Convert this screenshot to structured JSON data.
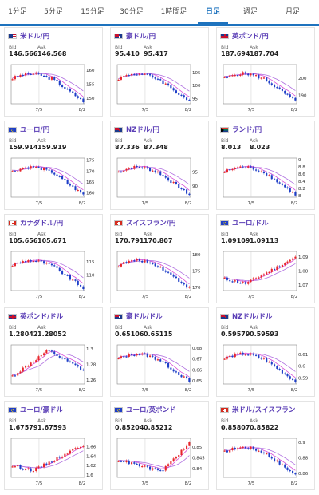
{
  "tabs": [
    "1分足",
    "5分足",
    "15分足",
    "30分足",
    "1時間足",
    "日足",
    "週足",
    "月足"
  ],
  "active_tab": 5,
  "labels": {
    "bid": "Bid",
    "ask": "Ask"
  },
  "cards": [
    {
      "name": "米ドル/円",
      "bid": "146.566",
      "ask": "146.568",
      "flag": "us",
      "x_ticks": [
        "7/5",
        "8/2"
      ],
      "y_ticks": [
        "160",
        "155",
        "150"
      ],
      "trend": "down",
      "ylim": [
        148,
        162
      ]
    },
    {
      "name": "豪ドル/円",
      "bid": "95.410",
      "ask": "95.417",
      "flag": "au",
      "x_ticks": [
        "7/5",
        "8/2"
      ],
      "y_ticks": [
        "105",
        "100",
        "95"
      ],
      "trend": "down",
      "ylim": [
        93,
        108
      ]
    },
    {
      "name": "英ポンド/円",
      "bid": "187.694",
      "ask": "187.704",
      "flag": "gb",
      "x_ticks": [
        "7/5",
        "8/2"
      ],
      "y_ticks": [
        "200",
        "190"
      ],
      "trend": "down",
      "ylim": [
        185,
        208
      ]
    },
    {
      "name": "ユーロ/円",
      "bid": "159.914",
      "ask": "159.919",
      "flag": "eu",
      "x_ticks": [
        "7/5",
        "8/2"
      ],
      "y_ticks": [
        "175",
        "170",
        "165",
        "160"
      ],
      "trend": "down",
      "ylim": [
        158,
        176
      ]
    },
    {
      "name": "NZドル/円",
      "bid": "87.336",
      "ask": "87.348",
      "flag": "nz",
      "x_ticks": [
        "7/5",
        "8/2"
      ],
      "y_ticks": [
        "95",
        "90"
      ],
      "trend": "down",
      "ylim": [
        86,
        100
      ]
    },
    {
      "name": "ランド/円",
      "bid": "8.013",
      "ask": "8.023",
      "flag": "za",
      "x_ticks": [
        "7/5",
        "8/2"
      ],
      "y_ticks": [
        "9",
        "8.8",
        "8.6",
        "8.4",
        "8.2",
        "8"
      ],
      "trend": "down",
      "ylim": [
        7.95,
        9.05
      ]
    },
    {
      "name": "カナダドル/円",
      "bid": "105.656",
      "ask": "105.671",
      "flag": "ca",
      "x_ticks": [
        "7/5",
        "8/2"
      ],
      "y_ticks": [
        "115",
        "110"
      ],
      "trend": "down",
      "ylim": [
        104,
        119
      ]
    },
    {
      "name": "スイスフラン/円",
      "bid": "170.791",
      "ask": "170.807",
      "flag": "ch",
      "x_ticks": [
        "7/5",
        "8/2"
      ],
      "y_ticks": [
        "180",
        "175",
        "170"
      ],
      "trend": "down",
      "ylim": [
        169,
        181
      ]
    },
    {
      "name": "ユーロ/ドル",
      "bid": "1.09109",
      "ask": "1.09113",
      "flag": "eu",
      "x_ticks": [
        "7/5",
        "8/2"
      ],
      "y_ticks": [
        "1.09",
        "1.08",
        "1.07"
      ],
      "trend": "up",
      "ylim": [
        1.066,
        1.094
      ]
    },
    {
      "name": "英ポンド/ドル",
      "bid": "1.28042",
      "ask": "1.28052",
      "flag": "gb",
      "x_ticks": [
        "7/5",
        "8/2"
      ],
      "y_ticks": [
        "1.3",
        "1.28",
        "1.26"
      ],
      "trend": "upthendown",
      "ylim": [
        1.255,
        1.305
      ]
    },
    {
      "name": "豪ドル/ドル",
      "bid": "0.65106",
      "ask": "0.65115",
      "flag": "au",
      "x_ticks": [
        "7/5",
        "8/2"
      ],
      "y_ticks": [
        "0.68",
        "0.67",
        "0.66",
        "0.65"
      ],
      "trend": "down",
      "ylim": [
        0.647,
        0.683
      ]
    },
    {
      "name": "NZドル/ドル",
      "bid": "0.59579",
      "ask": "0.59593",
      "flag": "nz",
      "x_ticks": [
        "7/5",
        "8/2"
      ],
      "y_ticks": [
        "0.61",
        "0.6",
        "0.59"
      ],
      "trend": "down",
      "ylim": [
        0.585,
        0.618
      ]
    },
    {
      "name": "ユーロ/豪ドル",
      "bid": "1.67579",
      "ask": "1.67593",
      "flag": "eu",
      "x_ticks": [
        "7/5",
        "8/2"
      ],
      "y_ticks": [
        "1.66",
        "1.64",
        "1.62",
        "1.6"
      ],
      "trend": "up",
      "ylim": [
        1.595,
        1.678
      ]
    },
    {
      "name": "ユーロ/英ポンド",
      "bid": "0.85204",
      "ask": "0.85212",
      "flag": "eu",
      "x_ticks": [
        "7/5",
        "8/2"
      ],
      "y_ticks": [
        "0.85",
        "0.845",
        "0.84"
      ],
      "trend": "dipup",
      "ylim": [
        0.836,
        0.854
      ]
    },
    {
      "name": "米ドル/スイスフラン",
      "bid": "0.85807",
      "ask": "0.85822",
      "flag": "ch",
      "x_ticks": [
        "7/5",
        "8/2"
      ],
      "y_ticks": [
        "0.9",
        "0.88",
        "0.86"
      ],
      "trend": "down",
      "ylim": [
        0.855,
        0.905
      ]
    }
  ],
  "colors": {
    "up": "#e8262b",
    "down": "#1e3ec8",
    "ma_short": "#d84bd8",
    "ma_long": "#b070e0",
    "tab_accent": "#1e73be",
    "pair_name": "#5b3fb6"
  }
}
